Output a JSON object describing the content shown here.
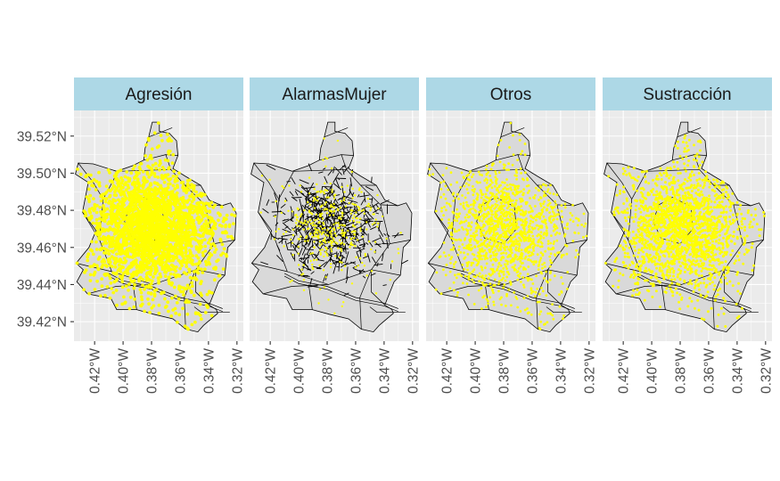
{
  "chart_data": {
    "type": "map",
    "facets": [
      "Agresión",
      "AlarmasMujer",
      "Otros",
      "Sustracción"
    ],
    "y_ticks": [
      {
        "value": 39.52,
        "label": "39.52°N"
      },
      {
        "value": 39.5,
        "label": "39.50°N"
      },
      {
        "value": 39.48,
        "label": "39.48°N"
      },
      {
        "value": 39.46,
        "label": "39.46°N"
      },
      {
        "value": 39.44,
        "label": "39.44°N"
      },
      {
        "value": 39.42,
        "label": "39.42°N"
      }
    ],
    "x_ticks": [
      {
        "value": -0.42,
        "label": "0.42°W"
      },
      {
        "value": -0.4,
        "label": "0.40°W"
      },
      {
        "value": -0.38,
        "label": "0.38°W"
      },
      {
        "value": -0.36,
        "label": "0.36°W"
      },
      {
        "value": -0.34,
        "label": "0.34°W"
      },
      {
        "value": -0.32,
        "label": "0.32°W"
      }
    ],
    "lon_range": [
      -0.4345,
      -0.3155
    ],
    "lat_range": [
      39.4095,
      39.5338
    ],
    "point_color": "#ffff00",
    "strip_fill": "#add8e6",
    "panel_background": "#ebebeb",
    "grid": true,
    "boundary": [
      [
        -0.3795,
        39.5275
      ],
      [
        -0.3745,
        39.5275
      ],
      [
        -0.3745,
        39.5225
      ],
      [
        -0.3675,
        39.5215
      ],
      [
        -0.3625,
        39.5175
      ],
      [
        -0.3615,
        39.5095
      ],
      [
        -0.365,
        39.5025
      ],
      [
        -0.3565,
        39.4985
      ],
      [
        -0.3455,
        39.4935
      ],
      [
        -0.3395,
        39.4855
      ],
      [
        -0.3305,
        39.4825
      ],
      [
        -0.3245,
        39.484
      ],
      [
        -0.3205,
        39.4785
      ],
      [
        -0.3215,
        39.464
      ],
      [
        -0.3265,
        39.46
      ],
      [
        -0.3285,
        39.445
      ],
      [
        -0.333,
        39.4415
      ],
      [
        -0.3395,
        39.429
      ],
      [
        -0.3345,
        39.4265
      ],
      [
        -0.3335,
        39.4245
      ],
      [
        -0.3435,
        39.418
      ],
      [
        -0.3475,
        39.4145
      ],
      [
        -0.356,
        39.416
      ],
      [
        -0.365,
        39.4215
      ],
      [
        -0.3785,
        39.424
      ],
      [
        -0.3905,
        39.4265
      ],
      [
        -0.4045,
        39.4265
      ],
      [
        -0.4085,
        39.4325
      ],
      [
        -0.425,
        39.435
      ],
      [
        -0.4325,
        39.4415
      ],
      [
        -0.428,
        39.448
      ],
      [
        -0.433,
        39.4515
      ],
      [
        -0.424,
        39.46
      ],
      [
        -0.419,
        39.469
      ],
      [
        -0.4285,
        39.479
      ],
      [
        -0.4245,
        39.495
      ],
      [
        -0.4335,
        39.4995
      ],
      [
        -0.4315,
        39.5055
      ],
      [
        -0.421,
        39.505
      ],
      [
        -0.4045,
        39.501
      ],
      [
        -0.3935,
        39.504
      ],
      [
        -0.3855,
        39.507
      ],
      [
        -0.3845,
        39.5135
      ],
      [
        -0.382,
        39.5195
      ],
      [
        -0.3795,
        39.5275
      ]
    ],
    "districts": [
      [
        [
          -0.4035,
          39.501
        ],
        [
          -0.3665,
          39.502
        ],
        [
          -0.3565,
          39.4935
        ],
        [
          -0.3425,
          39.483
        ],
        [
          -0.336,
          39.462
        ],
        [
          -0.349,
          39.448
        ],
        [
          -0.379,
          39.44
        ],
        [
          -0.408,
          39.447
        ],
        [
          -0.4165,
          39.464
        ],
        [
          -0.414,
          39.486
        ],
        [
          -0.4035,
          39.501
        ]
      ],
      [
        [
          -0.395,
          39.483
        ],
        [
          -0.3855,
          39.487
        ],
        [
          -0.3725,
          39.482
        ],
        [
          -0.371,
          39.47
        ],
        [
          -0.38,
          39.462
        ],
        [
          -0.3935,
          39.465
        ],
        [
          -0.399,
          39.474
        ],
        [
          -0.395,
          39.483
        ]
      ],
      [
        [
          -0.3655,
          39.5245
        ],
        [
          -0.382,
          39.5195
        ]
      ],
      [
        [
          -0.37,
          39.51
        ],
        [
          -0.3855,
          39.507
        ]
      ],
      [
        [
          -0.3665,
          39.502
        ],
        [
          -0.37,
          39.51
        ],
        [
          -0.3615,
          39.5095
        ]
      ],
      [
        [
          -0.4315,
          39.5055
        ],
        [
          -0.421,
          39.495
        ],
        [
          -0.414,
          39.486
        ]
      ],
      [
        [
          -0.4285,
          39.479
        ],
        [
          -0.4165,
          39.464
        ]
      ],
      [
        [
          -0.433,
          39.4515
        ],
        [
          -0.408,
          39.447
        ]
      ],
      [
        [
          -0.425,
          39.435
        ],
        [
          -0.405,
          39.439
        ],
        [
          -0.379,
          39.44
        ]
      ],
      [
        [
          -0.3905,
          39.4265
        ],
        [
          -0.393,
          39.44
        ]
      ],
      [
        [
          -0.356,
          39.416
        ],
        [
          -0.357,
          39.433
        ],
        [
          -0.349,
          39.448
        ]
      ],
      [
        [
          -0.3395,
          39.429
        ],
        [
          -0.349,
          39.436
        ],
        [
          -0.349,
          39.448
        ]
      ],
      [
        [
          -0.3285,
          39.445
        ],
        [
          -0.349,
          39.448
        ]
      ],
      [
        [
          -0.3215,
          39.464
        ],
        [
          -0.336,
          39.462
        ]
      ],
      [
        [
          -0.3305,
          39.4825
        ],
        [
          -0.3425,
          39.483
        ]
      ],
      [
        [
          -0.3455,
          39.4935
        ],
        [
          -0.3565,
          39.4935
        ]
      ],
      [
        [
          -0.41,
          39.446
        ],
        [
          -0.4,
          39.442
        ],
        [
          -0.38,
          39.439
        ],
        [
          -0.36,
          39.433
        ],
        [
          -0.34,
          39.43
        ],
        [
          -0.33,
          39.427
        ]
      ],
      [
        [
          -0.41,
          39.4445
        ],
        [
          -0.4,
          39.4405
        ],
        [
          -0.38,
          39.4375
        ],
        [
          -0.36,
          39.4315
        ],
        [
          -0.34,
          39.4285
        ],
        [
          -0.33,
          39.4255
        ]
      ],
      [
        [
          -0.35,
          39.428
        ],
        [
          -0.345,
          39.425
        ],
        [
          -0.338,
          39.425
        ],
        [
          -0.325,
          39.425
        ]
      ]
    ]
  }
}
